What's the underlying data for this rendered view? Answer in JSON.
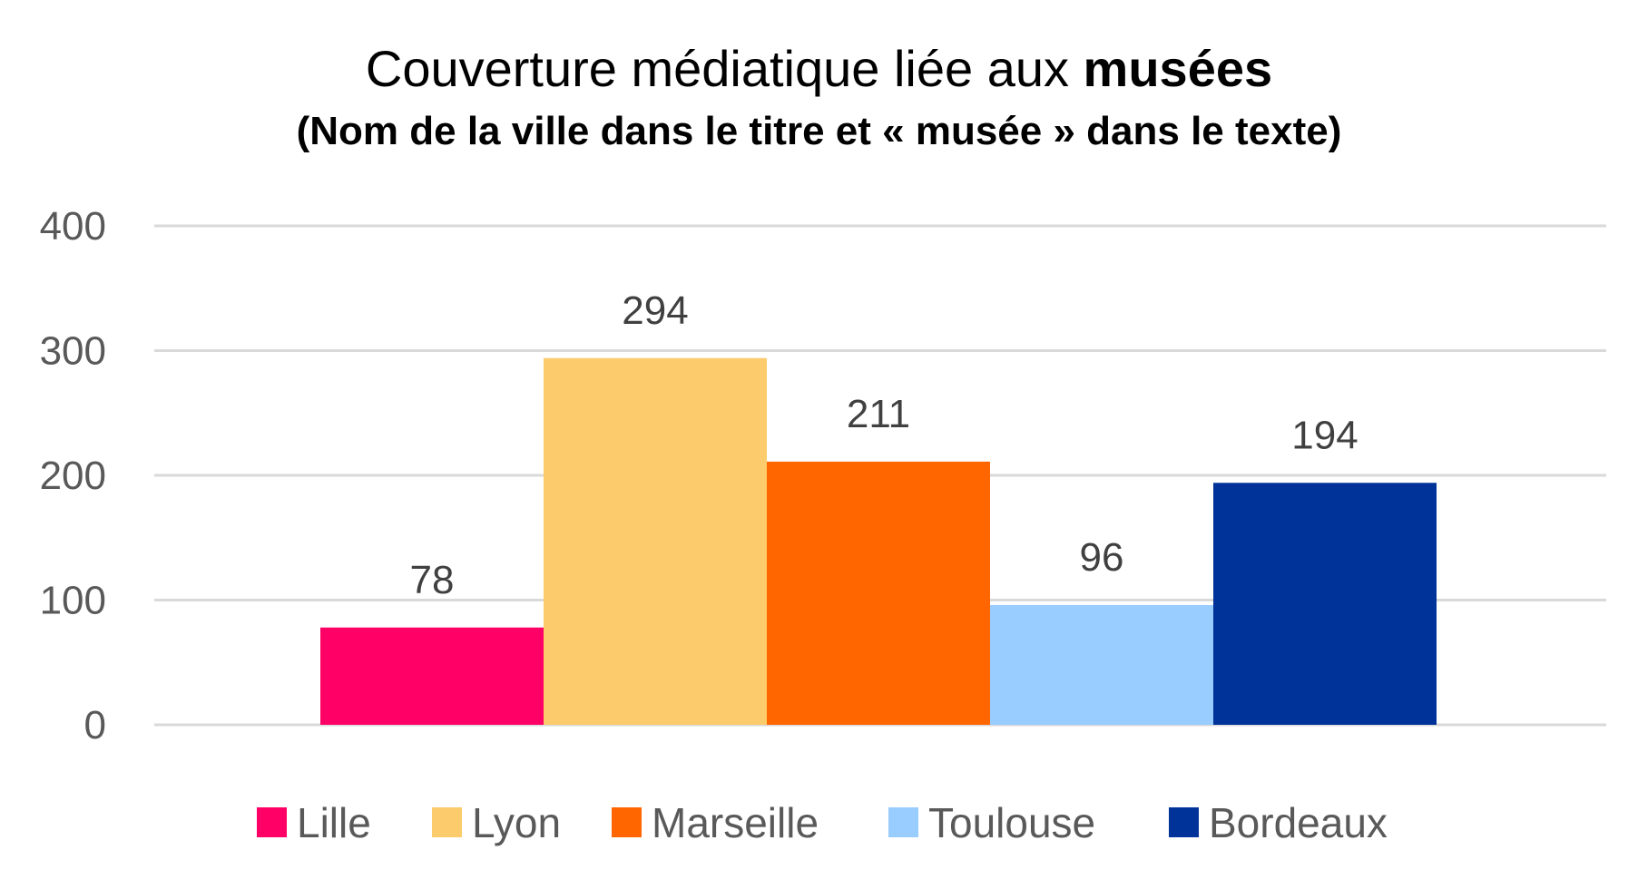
{
  "chart_data": {
    "type": "bar",
    "title_prefix": "Couverture médiatique liée aux ",
    "title_emphasis": "musées",
    "subtitle": "(Nom de la ville dans le titre et « musée » dans le texte)",
    "xlabel": "",
    "ylabel": "",
    "ylim": [
      0,
      400
    ],
    "yticks": [
      0,
      100,
      200,
      300,
      400
    ],
    "grid": true,
    "legend_position": "bottom",
    "series": [
      {
        "name": "Lille",
        "values": [
          78
        ],
        "color": "#ff0066"
      },
      {
        "name": "Lyon",
        "values": [
          294
        ],
        "color": "#fccb6b"
      },
      {
        "name": "Marseille",
        "values": [
          211
        ],
        "color": "#ff6600"
      },
      {
        "name": "Toulouse",
        "values": [
          96
        ],
        "color": "#99ccff"
      },
      {
        "name": "Bordeaux",
        "values": [
          194
        ],
        "color": "#003399"
      }
    ]
  }
}
